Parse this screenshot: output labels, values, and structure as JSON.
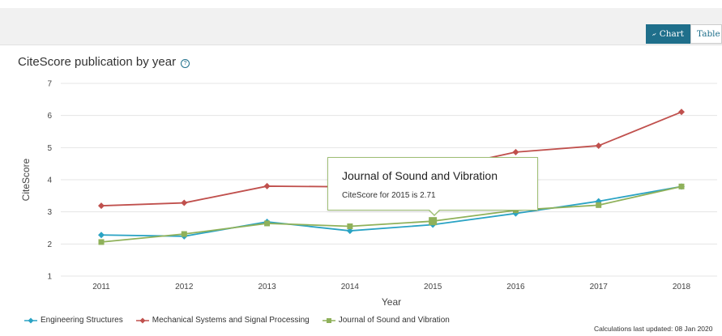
{
  "toolbar": {
    "chart_label": "Chart",
    "table_label": "Table"
  },
  "header": {
    "title": "CiteScore publication by year",
    "help_icon": "help-circle-icon"
  },
  "tooltip": {
    "title": "Journal of Sound and Vibration",
    "text": "CiteScore for 2015 is 2.71"
  },
  "footnote": "Calculations last updated: 08 Jan 2020",
  "chart_data": {
    "type": "line",
    "x": [
      "2011",
      "2012",
      "2013",
      "2014",
      "2015",
      "2016",
      "2017",
      "2018"
    ],
    "xlabel": "Year",
    "ylabel": "CiteScore",
    "ylim": [
      1,
      7
    ],
    "yticks": [
      "1",
      "2",
      "3",
      "4",
      "5",
      "6",
      "7"
    ],
    "grid": true,
    "legend_position": "bottom-left",
    "highlight": {
      "series": 2,
      "x": "2015"
    },
    "series": [
      {
        "name": "Engineering Structures",
        "color": "#2aa3c4",
        "marker": "diamond",
        "values": [
          2.28,
          2.24,
          2.69,
          2.41,
          2.6,
          2.95,
          3.33,
          3.79
        ]
      },
      {
        "name": "Mechanical Systems and Signal Processing",
        "color": "#c0504d",
        "marker": "diamond",
        "values": [
          3.19,
          3.28,
          3.8,
          3.78,
          4.3,
          4.86,
          5.06,
          6.11
        ]
      },
      {
        "name": "Journal of Sound and Vibration",
        "color": "#8fb15a",
        "marker": "square",
        "values": [
          2.06,
          2.31,
          2.64,
          2.55,
          2.71,
          3.05,
          3.21,
          3.79
        ]
      }
    ]
  }
}
